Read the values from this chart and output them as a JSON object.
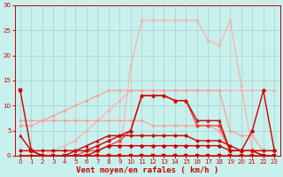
{
  "title": "",
  "xlabel": "Vent moyen/en rafales ( km/h )",
  "background_color": "#c8f0ec",
  "grid_color": "#a8d8d4",
  "x": [
    0,
    1,
    2,
    3,
    4,
    5,
    6,
    7,
    8,
    9,
    10,
    11,
    12,
    13,
    14,
    15,
    16,
    17,
    18,
    19,
    20,
    21,
    22,
    23
  ],
  "series": [
    {
      "y": [
        0,
        0,
        0,
        1,
        2,
        3,
        5,
        7,
        9,
        11,
        13,
        13,
        13,
        13,
        13,
        13,
        13,
        13,
        13,
        13,
        13,
        13,
        13,
        13
      ],
      "color": "#ffaaaa",
      "marker": "o",
      "linewidth": 0.8,
      "markersize": 2.0
    },
    {
      "y": [
        0,
        0,
        0,
        0,
        0,
        0,
        0,
        0,
        0,
        0,
        18,
        27,
        27,
        27,
        27,
        27,
        27,
        23,
        22,
        27,
        14,
        1,
        1,
        1
      ],
      "color": "#ffaaaa",
      "marker": "o",
      "linewidth": 0.8,
      "markersize": 2.0
    },
    {
      "y": [
        7,
        7,
        7,
        8,
        9,
        10,
        11,
        12,
        13,
        13,
        13,
        13,
        13,
        13,
        13,
        13,
        13,
        13,
        13,
        5,
        4,
        4,
        1,
        1
      ],
      "color": "#ff9999",
      "marker": "o",
      "linewidth": 0.8,
      "markersize": 2.0
    },
    {
      "y": [
        6,
        6,
        7,
        7,
        7,
        7,
        7,
        7,
        7,
        7,
        7,
        7,
        6,
        6,
        6,
        6,
        6,
        6,
        5,
        1,
        1,
        1,
        1,
        1
      ],
      "color": "#ff9999",
      "marker": "o",
      "linewidth": 0.8,
      "markersize": 2.0
    },
    {
      "y": [
        0,
        0,
        0,
        0,
        0,
        0,
        1,
        1,
        2,
        3,
        5,
        12,
        12,
        12,
        11,
        11,
        6,
        6,
        6,
        1,
        1,
        1,
        0,
        0
      ],
      "color": "#ee4444",
      "marker": "D",
      "linewidth": 1.0,
      "markersize": 2.5
    },
    {
      "y": [
        13,
        1,
        0,
        0,
        0,
        0,
        0,
        0,
        0,
        0,
        0,
        0,
        0,
        0,
        0,
        0,
        0,
        0,
        0,
        0,
        0,
        0,
        0,
        0
      ],
      "color": "#cc0000",
      "marker": "s",
      "linewidth": 1.0,
      "markersize": 2.5
    },
    {
      "y": [
        4,
        1,
        0,
        0,
        0,
        1,
        2,
        3,
        4,
        4,
        5,
        12,
        12,
        12,
        11,
        11,
        7,
        7,
        7,
        1,
        1,
        1,
        0,
        0
      ],
      "color": "#cc0000",
      "marker": "^",
      "linewidth": 1.0,
      "markersize": 2.5
    },
    {
      "y": [
        1,
        1,
        1,
        1,
        1,
        1,
        1,
        2,
        3,
        4,
        4,
        4,
        4,
        4,
        4,
        4,
        3,
        3,
        3,
        2,
        1,
        1,
        1,
        1
      ],
      "color": "#cc0000",
      "marker": "o",
      "linewidth": 1.0,
      "markersize": 2.5
    },
    {
      "y": [
        0,
        0,
        0,
        0,
        0,
        0,
        0,
        1,
        2,
        2,
        2,
        2,
        2,
        2,
        2,
        2,
        2,
        2,
        2,
        1,
        1,
        5,
        13,
        1
      ],
      "color": "#cc0000",
      "marker": "D",
      "linewidth": 1.0,
      "markersize": 2.5
    }
  ],
  "ylim": [
    0,
    30
  ],
  "xlim": [
    -0.5,
    23.5
  ],
  "yticks": [
    0,
    5,
    10,
    15,
    20,
    25,
    30
  ],
  "xticks": [
    0,
    1,
    2,
    3,
    4,
    5,
    6,
    7,
    8,
    9,
    10,
    11,
    12,
    13,
    14,
    15,
    16,
    17,
    18,
    19,
    20,
    21,
    22,
    23
  ],
  "tick_color": "#cc0000",
  "tick_fontsize": 5.0,
  "xlabel_fontsize": 6.5,
  "xlabel_color": "#cc0000"
}
